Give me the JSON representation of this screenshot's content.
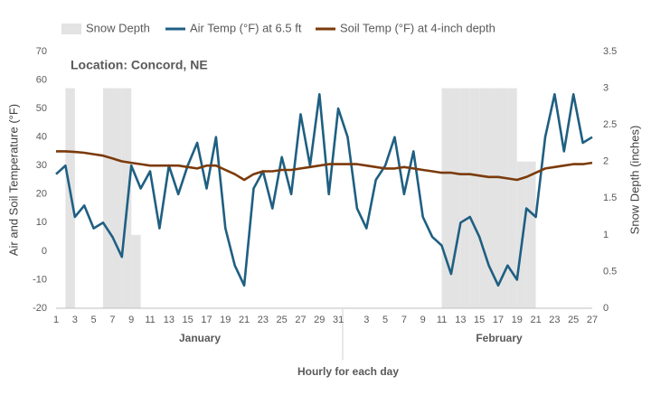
{
  "chart_data": {
    "type": "line",
    "annotation": "Location: Concord, NE",
    "y_label": "Air and Soil Temperature (°F)",
    "y2_label": "Snow Depth (inches)",
    "x_label": "Hourly for each day",
    "groups": [
      "January",
      "February"
    ],
    "categories": [
      "1",
      null,
      "3",
      null,
      "5",
      null,
      "7",
      null,
      "9",
      null,
      "11",
      null,
      "13",
      null,
      "15",
      null,
      "17",
      null,
      "19",
      null,
      "21",
      null,
      "23",
      null,
      "25",
      null,
      "27",
      null,
      "29",
      null,
      "31",
      null,
      null,
      "3",
      null,
      "5",
      null,
      "7",
      null,
      "9",
      null,
      "11",
      null,
      "13",
      null,
      "15",
      null,
      "17",
      null,
      "19",
      null,
      "21",
      null,
      "23",
      null,
      "25",
      null,
      "27"
    ],
    "series": [
      {
        "name": "Snow Depth",
        "color": "#e3e3e3",
        "axis": "y2",
        "kind": "column",
        "values": [
          0,
          3,
          0,
          0,
          0,
          3,
          3,
          3,
          1,
          0,
          0,
          0,
          0,
          0,
          0,
          0,
          0,
          0,
          0,
          0,
          0,
          0,
          0,
          0,
          0,
          0,
          0,
          0,
          0,
          0,
          0,
          0,
          0,
          0,
          0,
          0,
          0,
          0,
          0,
          0,
          0,
          3,
          3,
          3,
          3,
          3,
          3,
          3,
          3,
          2,
          2,
          0,
          0,
          0,
          0,
          0,
          0,
          0
        ]
      },
      {
        "name": "Air Temp (°F) at 6.5 ft",
        "color": "#1f5f82",
        "values": [
          27,
          30,
          12,
          16,
          8,
          10,
          5,
          -2,
          30,
          22,
          28,
          8,
          30,
          20,
          30,
          38,
          22,
          40,
          8,
          -5,
          -12,
          22,
          28,
          15,
          33,
          20,
          48,
          30,
          55,
          20,
          50,
          40,
          15,
          8,
          25,
          30,
          40,
          20,
          35,
          12,
          5,
          2,
          -8,
          10,
          12,
          5,
          -5,
          -12,
          -5,
          -10,
          15,
          12,
          40,
          55,
          35,
          55,
          38,
          40
        ]
      },
      {
        "name": "Soil Temp (°F) at 4-inch depth",
        "color": "#7b3a0a",
        "values": [
          35,
          35,
          34.8,
          34.5,
          34,
          33.5,
          32.5,
          31.5,
          31,
          30.5,
          30,
          30,
          30,
          30,
          29.5,
          29,
          30,
          30,
          28.5,
          27,
          25,
          27,
          28,
          28,
          28.5,
          28.5,
          29,
          29.5,
          30,
          30.5,
          30.5,
          30.5,
          30.5,
          30,
          29.5,
          29,
          29,
          29.5,
          29,
          28.5,
          28,
          27.5,
          27.5,
          27,
          27,
          26.5,
          26,
          26,
          25.5,
          25,
          26,
          27.5,
          29,
          29.5,
          30,
          30.5,
          30.5,
          31
        ]
      }
    ],
    "ylim": [
      -20,
      70
    ],
    "yticks": [
      -20,
      -10,
      0,
      10,
      20,
      30,
      40,
      50,
      60,
      70
    ],
    "y2lim": [
      0,
      3.5
    ],
    "y2ticks": [
      0,
      0.5,
      1,
      1.5,
      2,
      2.5,
      3,
      3.5
    ],
    "legend": "top"
  }
}
